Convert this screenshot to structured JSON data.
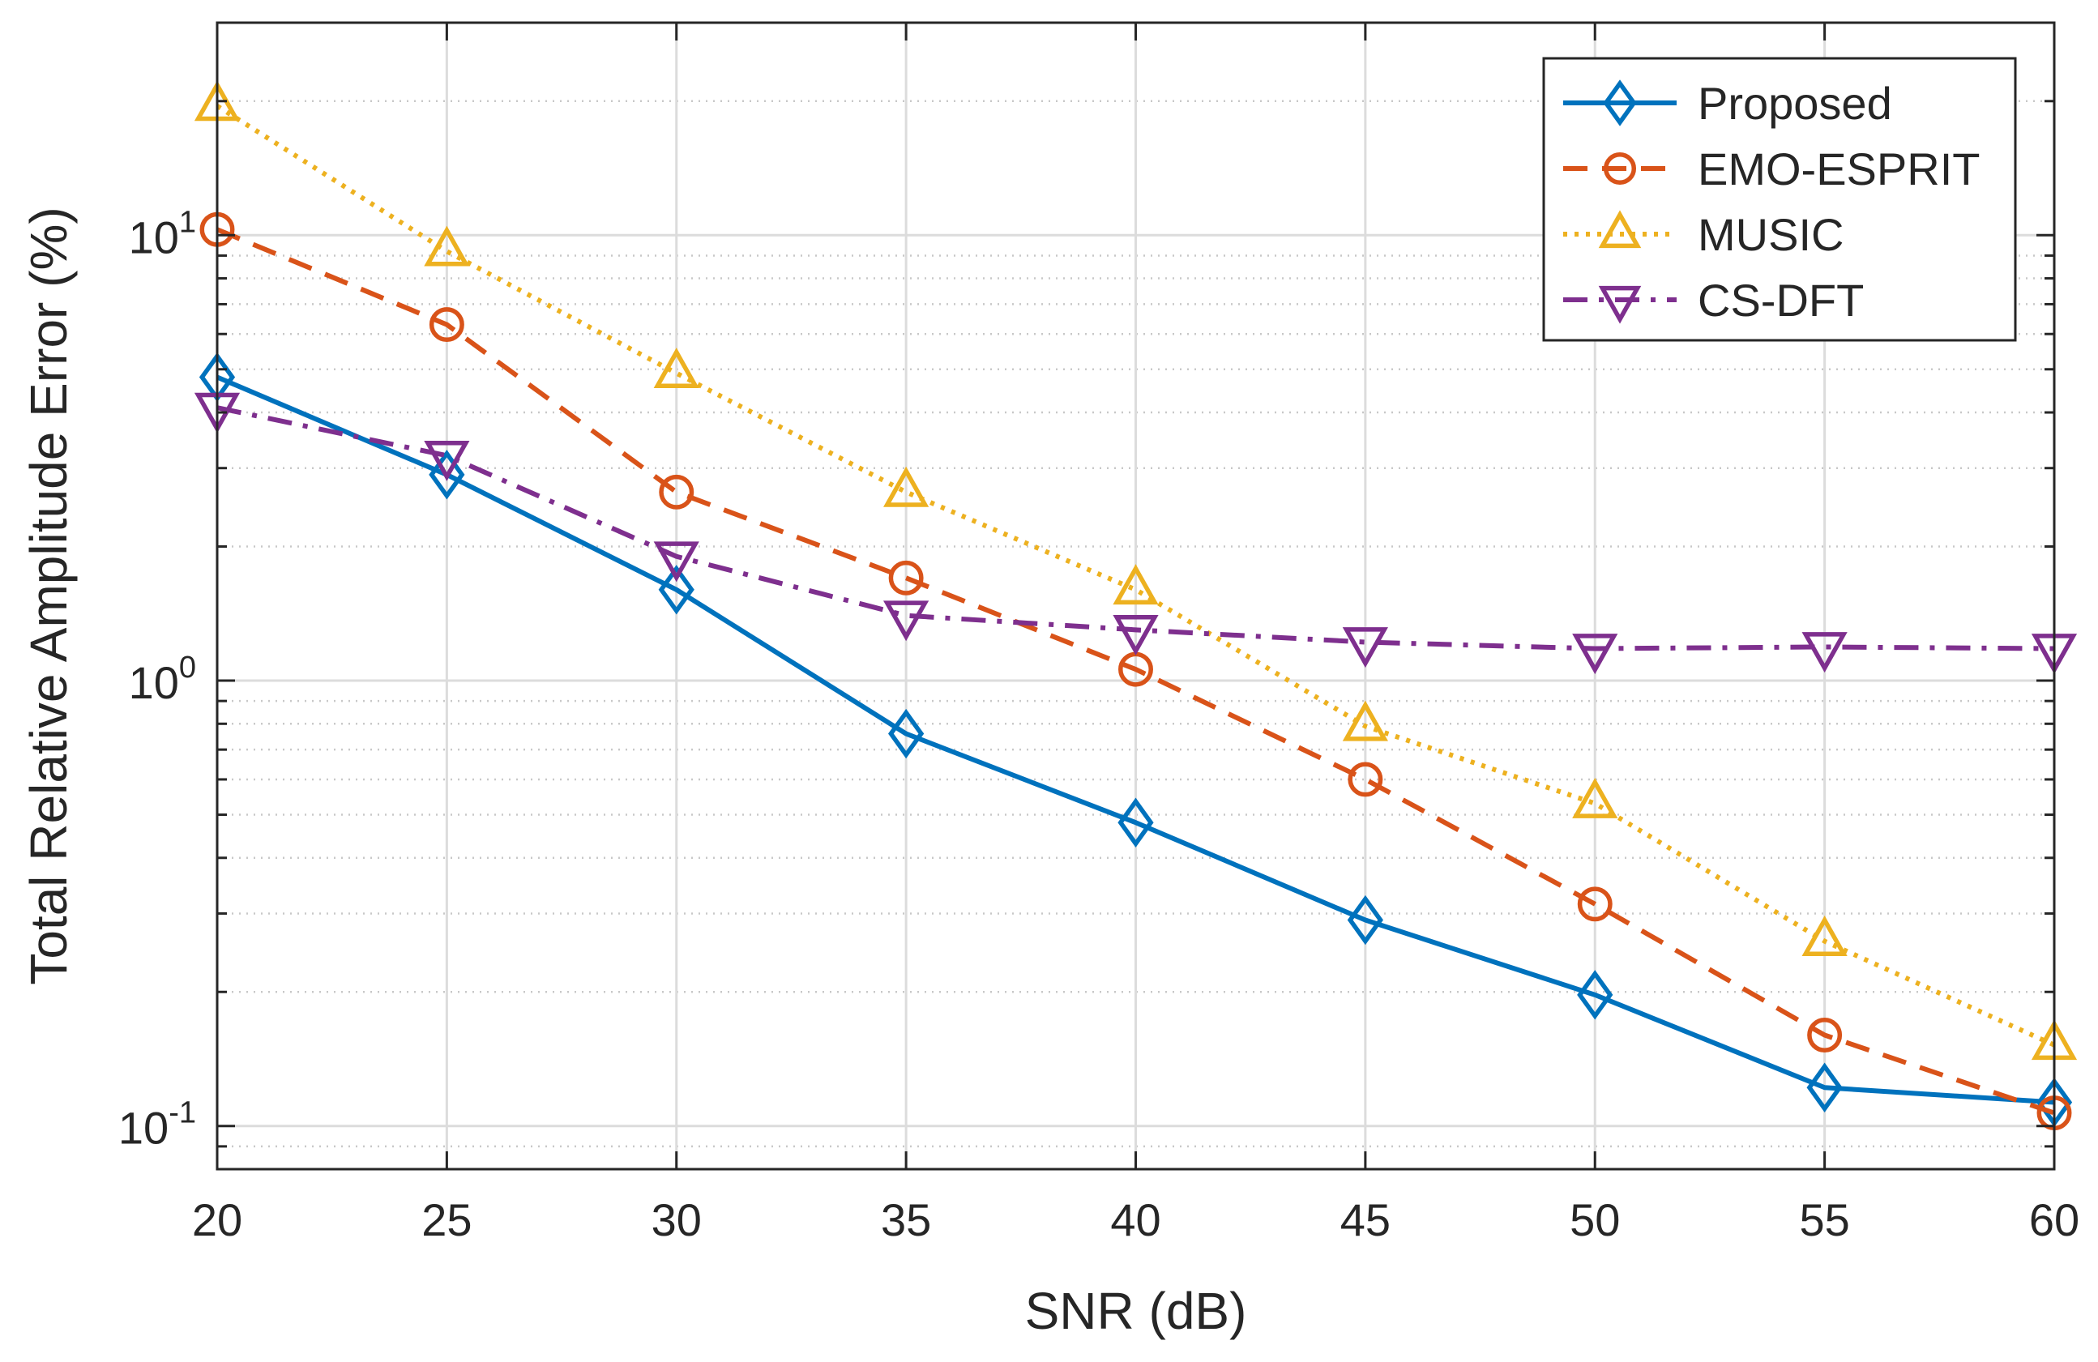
{
  "chart_data": {
    "type": "line",
    "title": "",
    "xlabel": "SNR (dB)",
    "ylabel": "Total Relative Amplitude Error (%)",
    "xscale": "linear",
    "yscale": "log",
    "xlim": [
      20,
      60
    ],
    "ylim": [
      0.08,
      30
    ],
    "grid": true,
    "legend_position": "top-right",
    "x": [
      20,
      25,
      30,
      35,
      40,
      45,
      50,
      55,
      60
    ],
    "x_ticks": [
      "20",
      "25",
      "30",
      "35",
      "40",
      "45",
      "50",
      "55",
      "60"
    ],
    "y_ticks": [
      {
        "value": 0.1,
        "base": "10",
        "exp": "-1"
      },
      {
        "value": 1,
        "base": "10",
        "exp": "0"
      },
      {
        "value": 10,
        "base": "10",
        "exp": "1"
      }
    ],
    "series": [
      {
        "name": "Proposed",
        "color": "#0072BD",
        "marker": "diamond",
        "dash": "solid",
        "values": [
          4.8,
          2.9,
          1.6,
          0.76,
          0.48,
          0.29,
          0.197,
          0.122,
          0.113
        ]
      },
      {
        "name": "EMO-ESPRIT",
        "color": "#D95319",
        "marker": "circle",
        "dash": "dashed",
        "values": [
          10.3,
          6.3,
          2.65,
          1.7,
          1.06,
          0.6,
          0.315,
          0.16,
          0.107
        ]
      },
      {
        "name": "MUSIC",
        "color": "#EDB120",
        "marker": "triangle-up",
        "dash": "dotted",
        "values": [
          19.5,
          9.2,
          4.9,
          2.65,
          1.6,
          0.79,
          0.53,
          0.26,
          0.152
        ]
      },
      {
        "name": "CS-DFT",
        "color": "#7E2F8E",
        "marker": "triangle-down",
        "dash": "dashdot",
        "values": [
          4.1,
          3.2,
          1.9,
          1.4,
          1.3,
          1.22,
          1.18,
          1.19,
          1.18
        ]
      }
    ]
  }
}
